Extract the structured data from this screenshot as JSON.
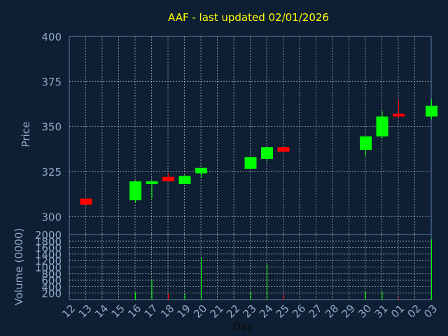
{
  "chart_data": {
    "type": "candlestick",
    "title": "AAF - last updated 02/01/2026",
    "xlabel": "Day",
    "ylabel": "Price",
    "volume_ylabel": "Volume (0000)",
    "x_ticks": [
      "12",
      "13",
      "14",
      "15",
      "16",
      "17",
      "18",
      "19",
      "20",
      "21",
      "22",
      "23",
      "24",
      "25",
      "26",
      "27",
      "28",
      "29",
      "30",
      "31",
      "01",
      "02",
      "03"
    ],
    "price_ylim": [
      290,
      400
    ],
    "price_ticks": [
      300,
      325,
      350,
      375,
      400
    ],
    "volume_ylim": [
      0,
      2000
    ],
    "volume_ticks": [
      200,
      400,
      600,
      800,
      1000,
      1200,
      1400,
      1600,
      1800,
      2000
    ],
    "grid": true,
    "colors": {
      "background": "#0f1f33",
      "text": "#8fa9c8",
      "title": "#ffff00",
      "up": "#00ff00",
      "down": "#ff0000",
      "grid": "#c8c8c8",
      "frame": "#5b7da6"
    },
    "candles": [
      {
        "day": "12",
        "open": 310.0,
        "high": 310.0,
        "low": 306.5,
        "close": 306.5,
        "volume": 0
      },
      {
        "day": "15",
        "open": 309.0,
        "high": 320.0,
        "low": 307.5,
        "close": 319.5,
        "volume": 220
      },
      {
        "day": "16",
        "open": 318.0,
        "high": 320.0,
        "low": 310.0,
        "close": 319.5,
        "volume": 620
      },
      {
        "day": "17",
        "open": 322.0,
        "high": 324.0,
        "low": 319.5,
        "close": 319.5,
        "volume": 180
      },
      {
        "day": "18",
        "open": 318.0,
        "high": 323.0,
        "low": 318.0,
        "close": 322.5,
        "volume": 170
      },
      {
        "day": "19",
        "open": 324.0,
        "high": 327.0,
        "low": 321.5,
        "close": 327.0,
        "volume": 1300
      },
      {
        "day": "22",
        "open": 326.5,
        "high": 333.0,
        "low": 326.5,
        "close": 333.0,
        "volume": 230
      },
      {
        "day": "23",
        "open": 332.0,
        "high": 338.5,
        "low": 330.5,
        "close": 338.5,
        "volume": 1100
      },
      {
        "day": "24",
        "open": 338.5,
        "high": 338.5,
        "low": 335.5,
        "close": 336.0,
        "volume": 150
      },
      {
        "day": "29",
        "open": 337.0,
        "high": 344.5,
        "low": 333.5,
        "close": 344.5,
        "volume": 250
      },
      {
        "day": "30",
        "open": 344.5,
        "high": 358.5,
        "low": 343.5,
        "close": 355.5,
        "volume": 240
      },
      {
        "day": "31",
        "open": 357.0,
        "high": 364.5,
        "low": 355.0,
        "close": 355.5,
        "volume": 60
      },
      {
        "day": "02",
        "open": 355.5,
        "high": 365.0,
        "low": 354.0,
        "close": 361.5,
        "volume": 1850
      }
    ]
  }
}
